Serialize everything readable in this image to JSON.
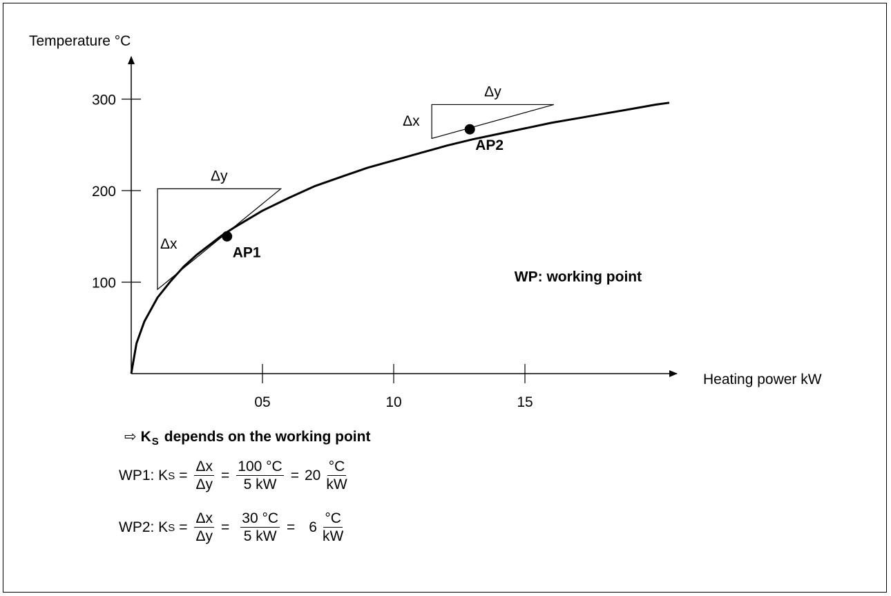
{
  "chart_data": {
    "type": "line",
    "title": "",
    "xlabel": "Heating power kW",
    "ylabel": "Temperature °C",
    "xlim": [
      0,
      20.5
    ],
    "ylim": [
      0,
      320
    ],
    "x_ticks": [
      {
        "value": 5,
        "label": "05"
      },
      {
        "value": 10,
        "label": "10"
      },
      {
        "value": 15,
        "label": "15"
      }
    ],
    "y_ticks": [
      {
        "value": 100,
        "label": "100"
      },
      {
        "value": 200,
        "label": "200"
      },
      {
        "value": 300,
        "label": "300"
      }
    ],
    "grid": false,
    "series": [
      {
        "x": [
          0,
          0.2,
          0.5,
          1,
          1.5,
          2,
          2.5,
          3,
          3.5,
          4,
          5,
          6,
          7,
          8,
          9,
          10,
          11,
          12,
          13,
          14,
          15,
          16,
          17,
          18,
          19,
          20
        ],
        "values": [
          0,
          33,
          57,
          83,
          101,
          117,
          130,
          141,
          152,
          161,
          178,
          192,
          205,
          215,
          225,
          233,
          241,
          249,
          256,
          262,
          268,
          274,
          279,
          284,
          289,
          294
        ]
      }
    ],
    "points": [
      {
        "label": "AP1",
        "x": 3.65,
        "y": 150
      },
      {
        "label": "AP2",
        "x": 12.9,
        "y": 267
      }
    ],
    "slope_triangles": [
      {
        "dx_label": "Δx",
        "dy_label": "Δy",
        "x_from": 1.0,
        "x_to": 5.7,
        "y_from": 92,
        "y_to": 202
      },
      {
        "dx_label": "Δx",
        "dy_label": "Δy",
        "x_from": 11.45,
        "x_to": 16.1,
        "y_from": 257,
        "y_to": 294
      }
    ],
    "annotations": [
      {
        "text": "WP: working point",
        "x": 14.6,
        "y": 100
      }
    ]
  },
  "text": {
    "conclusion_arrow": "⇨",
    "conclusion_symbol": "K",
    "conclusion_sub": "S",
    "conclusion_rest": "depends on the working point",
    "eq1": {
      "lhs": "WP1: K",
      "sub": "S",
      "eq_sign": "=",
      "f1_num": "Δx",
      "f1_den": "Δy",
      "f2_num": "100 °C",
      "f2_den": "5 kW",
      "coef": "20",
      "f3_num": "°C",
      "f3_den": "kW"
    },
    "eq2": {
      "lhs": "WP2: K",
      "sub": "S",
      "eq_sign": "=",
      "f1_num": "Δx",
      "f1_den": "Δy",
      "f2_num": "30 °C",
      "f2_den": "5 kW",
      "coef": "6",
      "f3_num": "°C",
      "f3_den": "kW"
    }
  }
}
